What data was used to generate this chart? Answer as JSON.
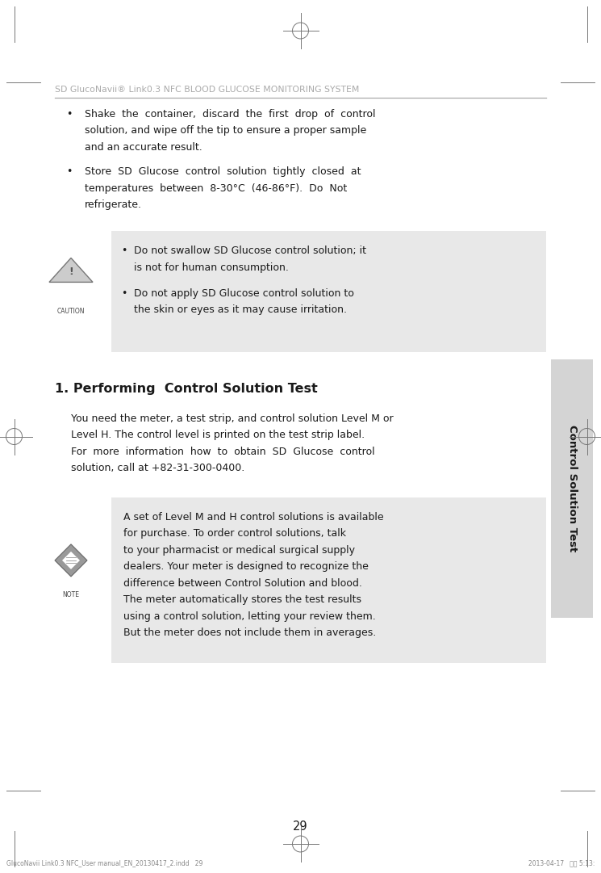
{
  "bg_color": "#ffffff",
  "page_width": 7.45,
  "page_height": 10.81,
  "header_text": "SD GlucoNavii® Link0.3 NFC BLOOD GLUCOSE MONITORING SYSTEM",
  "header_color": "#aaaaaa",
  "header_underline_color": "#aaaaaa",
  "bullet1_line1": "Shake  the  container,  discard  the  first  drop  of  control",
  "bullet1_line2": "solution, and wipe off the tip to ensure a proper sample",
  "bullet1_line3": "and an accurate result.",
  "bullet2_line1": "Store  SD  Glucose  control  solution  tightly  closed  at",
  "bullet2_line2": "temperatures  between  8-30°C  (46-86°F).  Do  Not",
  "bullet2_line3": "refrigerate.",
  "caution_box_bg": "#e8e8e8",
  "caution1_line1": "Do not swallow SD Glucose control solution; it",
  "caution1_line2": "is not for human consumption.",
  "caution2_line1": "Do not apply SD Glucose control solution to",
  "caution2_line2": "the skin or eyes as it may cause irritation.",
  "section_title": "1. Performing  Control Solution Test",
  "para1_line1": "You need the meter, a test strip, and control solution Level M or",
  "para1_line2": "Level H. The control level is printed on the test strip label.",
  "para2_line1": "For  more  information  how  to  obtain  SD  Glucose  control",
  "para2_line2": "solution, call at +82-31-300-0400.",
  "note_box_bg": "#e8e8e8",
  "note_line1": "A set of Level M and H control solutions is available",
  "note_line2": "for purchase. To order control solutions, talk",
  "note_line3": "to your pharmacist or medical surgical supply",
  "note_line4": "dealers. Your meter is designed to recognize the",
  "note_line5": "difference between Control Solution and blood.",
  "note_line6": "The meter automatically stores the test results",
  "note_line7": "using a control solution, letting your review them.",
  "note_line8": "But the meter does not include them in averages.",
  "sidebar_text": "Control Solution Test",
  "sidebar_bg": "#d4d4d4",
  "page_number": "29",
  "footer_left": "GlucoNavii Link0.3 NFC_User manual_EN_20130417_2.indd   29",
  "footer_right": "2013-04-17   오후 5:13:",
  "text_color": "#1a1a1a",
  "body_font_size": 9.0,
  "caution_font_size": 9.0,
  "note_font_size": 9.0,
  "header_font_size": 7.8,
  "section_font_size": 11.5
}
